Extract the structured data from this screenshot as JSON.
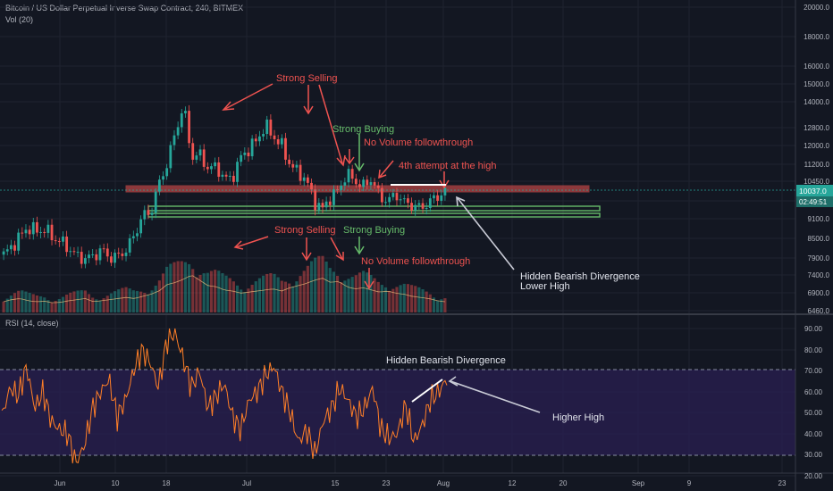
{
  "header": {
    "symbol_line": "Bitcoin / US Dollar Perpetual Inverse Swap Contract, 240, BITMEX",
    "vol_label": "Vol (20)",
    "rsi_label": "RSI (14, close)"
  },
  "price_badge": {
    "value": "10037.0",
    "countdown": "02:49:51"
  },
  "colors": {
    "background": "#131722",
    "up": "#26a69a",
    "down": "#ef5350",
    "rsi_line": "#ff7f27",
    "rsi_band": "#2a1f52",
    "resistance_zone": "#ef5350",
    "support_zone": "#66bb6a",
    "annotation_red": "#ef5350",
    "annotation_green": "#66bb6a",
    "annotation_white": "#e0e3eb"
  },
  "chart_data": [
    {
      "type": "line",
      "title": "",
      "scale": "log",
      "x_ticks": [
        "Jun",
        "10",
        "18",
        "Jul",
        "15",
        "23",
        "Aug",
        "12",
        "20",
        "Sep",
        "9",
        "23"
      ],
      "y_ticks": [
        20000.0,
        18000.0,
        16000.0,
        15000.0,
        14000.0,
        12800.0,
        12000.0,
        11200.0,
        10450.0,
        9700.0,
        9100.0,
        8500.0,
        7900.0,
        7400.0,
        6900.0,
        6460.0
      ],
      "ylim": [
        6400,
        20000
      ],
      "series": [
        {
          "values": [
            8000,
            8250,
            8550,
            8850,
            8700,
            8780,
            8520,
            8400,
            8180,
            7950,
            7880,
            7960,
            8150,
            7900,
            7950,
            8150,
            8600,
            9200,
            9300,
            10350,
            11200,
            12600,
            13800,
            11500,
            11600,
            11000,
            11100,
            10550,
            10600,
            11500,
            11850,
            12250,
            12900,
            12400,
            12000,
            11200,
            10850,
            10500,
            9700,
            9400,
            9850,
            10100,
            10800,
            10450,
            10250,
            10550,
            9850,
            9700,
            9950,
            9650,
            9550,
            9450,
            9650,
            9850,
            10050
          ]
        }
      ],
      "annotations": [
        "Strong Selling",
        "Strong Buying",
        "No Volume followthrough",
        "4th attempt at the high",
        "Hidden Bearish Divergence",
        "Lower High"
      ]
    },
    {
      "type": "bar",
      "title": "",
      "values": [
        20,
        24,
        26,
        22,
        20,
        21,
        18,
        19,
        22,
        24,
        26,
        20,
        22,
        24,
        26,
        28,
        26,
        30,
        34,
        40,
        52,
        56,
        62,
        70,
        60,
        50,
        48,
        42,
        40,
        36,
        38,
        40,
        42,
        44,
        40,
        46,
        50,
        54,
        60,
        64,
        56,
        58,
        48,
        44,
        46,
        42,
        38,
        40,
        36,
        34,
        30,
        28,
        26,
        22,
        20
      ]
    },
    {
      "type": "line",
      "title": "",
      "y_ticks": [
        90.0,
        80.0,
        70.0,
        60.0,
        50.0,
        40.0,
        30.0,
        20.0
      ],
      "ylim": [
        20,
        92
      ],
      "band": [
        30,
        70
      ],
      "series": [
        {
          "values": [
            48,
            62,
            58,
            72,
            52,
            60,
            46,
            42,
            40,
            26,
            34,
            52,
            60,
            66,
            48,
            56,
            70,
            80,
            74,
            62,
            84,
            88,
            76,
            62,
            70,
            52,
            58,
            64,
            48,
            42,
            56,
            60,
            68,
            72,
            60,
            50,
            36,
            42,
            30,
            46,
            52,
            62,
            56,
            48,
            52,
            62,
            42,
            38,
            40,
            54,
            36,
            44,
            56,
            60,
            66
          ]
        }
      ],
      "annotations": [
        "Hidden Bearish Divergence",
        "Higher High"
      ]
    }
  ]
}
